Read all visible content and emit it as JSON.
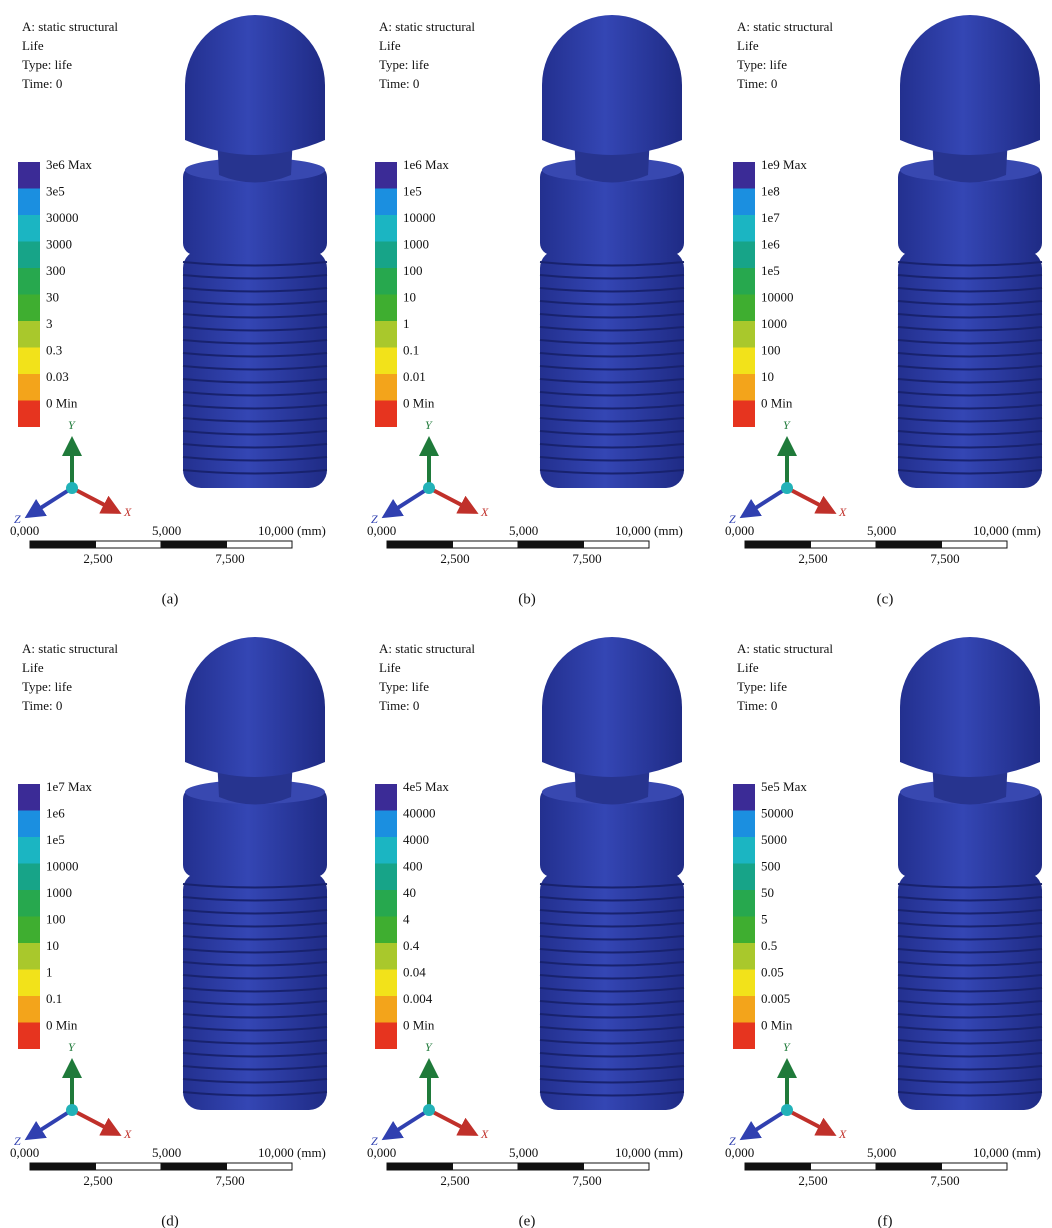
{
  "legend_colors": [
    "#3b2b96",
    "#1b8fe0",
    "#1bb5c2",
    "#17a488",
    "#27a84e",
    "#3fae30",
    "#a9c82c",
    "#f2e21a",
    "#f3a41b",
    "#e6341f"
  ],
  "panels": [
    {
      "label": "(a)",
      "header": [
        "A: static structural",
        "Life",
        "Type: life",
        "Time: 0"
      ],
      "legend": [
        "3e6 Max",
        "3e5",
        "30000",
        "3000",
        "300",
        "30",
        "3",
        "0.3",
        "0.03",
        "0 Min"
      ],
      "axes": {
        "x": "X",
        "y": "Y",
        "z": "Z"
      },
      "scale": {
        "top": [
          "0,000",
          "5,000",
          "10,000 (mm)"
        ],
        "bottom": [
          "2,500",
          "7,500"
        ]
      }
    },
    {
      "label": "(b)",
      "header": [
        "A: static structural",
        "Life",
        "Type: life",
        "Time: 0"
      ],
      "legend": [
        "1e6 Max",
        "1e5",
        "10000",
        "1000",
        "100",
        "10",
        "1",
        "0.1",
        "0.01",
        "0 Min"
      ],
      "axes": {
        "x": "X",
        "y": "Y",
        "z": "Z"
      },
      "scale": {
        "top": [
          "0,000",
          "5,000",
          "10,000 (mm)"
        ],
        "bottom": [
          "2,500",
          "7,500"
        ]
      }
    },
    {
      "label": "(c)",
      "header": [
        "A: static structural",
        "Life",
        "Type: life",
        "Time: 0"
      ],
      "legend": [
        "1e9 Max",
        "1e8",
        "1e7",
        "1e6",
        "1e5",
        "10000",
        "1000",
        "100",
        "10",
        "0 Min"
      ],
      "axes": {
        "x": "X",
        "y": "Y",
        "z": "Z"
      },
      "scale": {
        "top": [
          "0,000",
          "5,000",
          "10,000 (mm)"
        ],
        "bottom": [
          "2,500",
          "7,500"
        ]
      }
    },
    {
      "label": "(d)",
      "header": [
        "A: static structural",
        "Life",
        "Type: life",
        "Time: 0"
      ],
      "legend": [
        "1e7 Max",
        "1e6",
        "1e5",
        "10000",
        "1000",
        "100",
        "10",
        "1",
        "0.1",
        "0 Min"
      ],
      "axes": {
        "x": "X",
        "y": "Y",
        "z": "Z"
      },
      "scale": {
        "top": [
          "0,000",
          "5,000",
          "10,000 (mm)"
        ],
        "bottom": [
          "2,500",
          "7,500"
        ]
      }
    },
    {
      "label": "(e)",
      "header": [
        "A: static structural",
        "Life",
        "Type: life",
        "Time: 0"
      ],
      "legend": [
        "4e5 Max",
        "40000",
        "4000",
        "400",
        "40",
        "4",
        "0.4",
        "0.04",
        "0.004",
        "0 Min"
      ],
      "axes": {
        "x": "X",
        "y": "Y",
        "z": "Z"
      },
      "scale": {
        "top": [
          "0,000",
          "5,000",
          "10,000 (mm)"
        ],
        "bottom": [
          "2,500",
          "7,500"
        ]
      }
    },
    {
      "label": "(f)",
      "header": [
        "A: static structural",
        "Life",
        "Type: life",
        "Time: 0"
      ],
      "legend": [
        "5e5 Max",
        "50000",
        "5000",
        "500",
        "50",
        "5",
        "0.5",
        "0.05",
        "0.005",
        "0 Min"
      ],
      "axes": {
        "x": "X",
        "y": "Y",
        "z": "Z"
      },
      "scale": {
        "top": [
          "0,000",
          "5,000",
          "10,000 (mm)"
        ],
        "bottom": [
          "2,500",
          "7,500"
        ]
      }
    }
  ]
}
